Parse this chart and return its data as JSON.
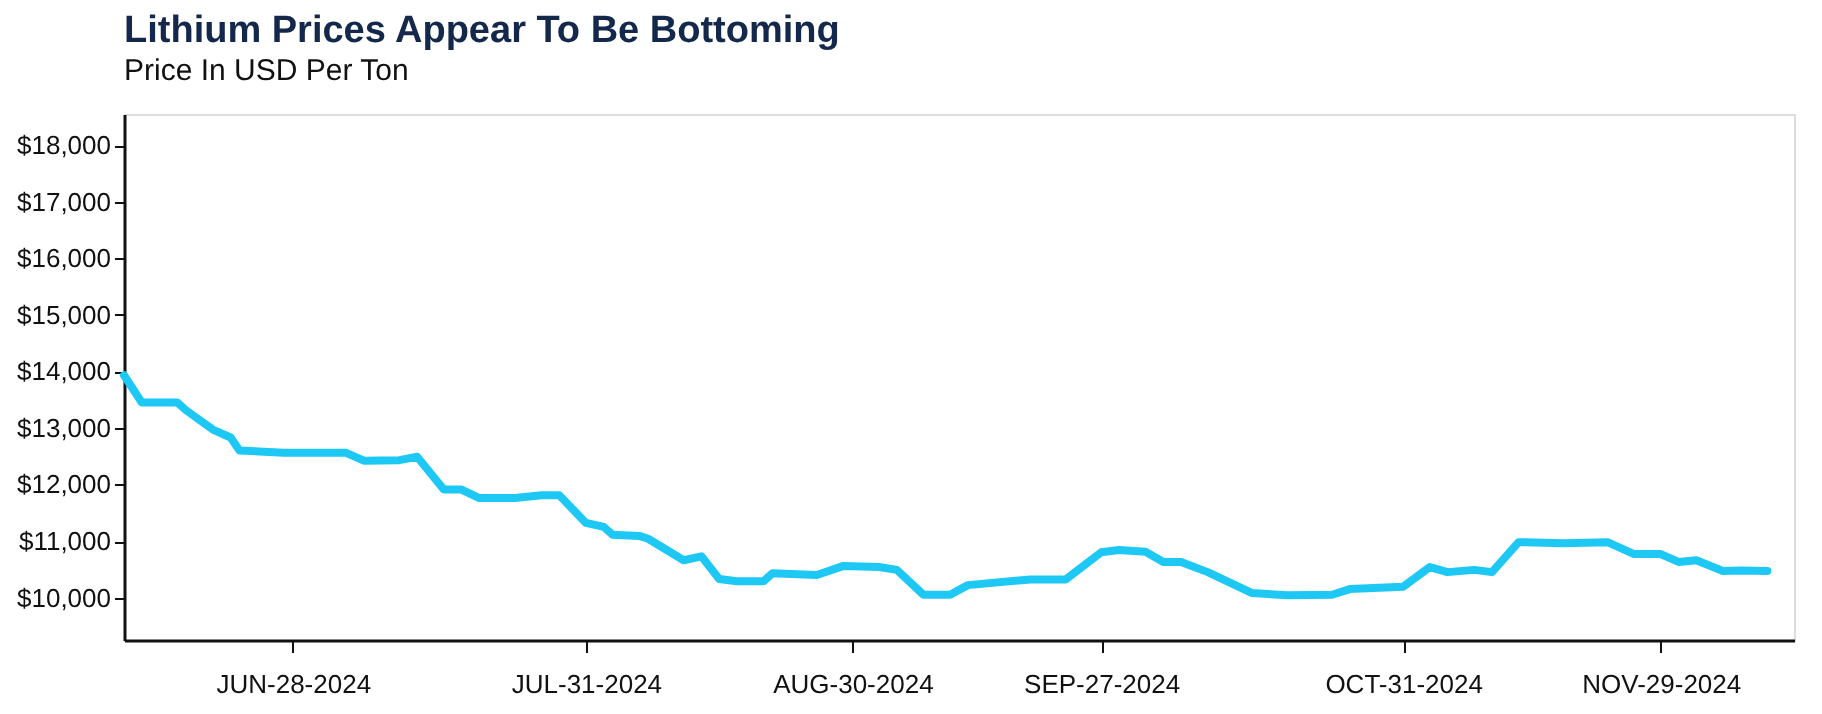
{
  "chart_data": {
    "type": "line",
    "title": "Lithium Prices Appear To Be Bottoming",
    "subtitle": "Price In USD Per Ton",
    "x": [
      "2024-06-09",
      "2024-06-11",
      "2024-06-15",
      "2024-06-16",
      "2024-06-19",
      "2024-06-21",
      "2024-06-22",
      "2024-06-27",
      "2024-07-04",
      "2024-07-06",
      "2024-07-10",
      "2024-07-12",
      "2024-07-15",
      "2024-07-17",
      "2024-07-19",
      "2024-07-23",
      "2024-07-26",
      "2024-07-28",
      "2024-07-31",
      "2024-08-02",
      "2024-08-03",
      "2024-08-06",
      "2024-08-07",
      "2024-08-11",
      "2024-08-13",
      "2024-08-15",
      "2024-08-17",
      "2024-08-20",
      "2024-08-21",
      "2024-08-26",
      "2024-08-29",
      "2024-09-02",
      "2024-09-04",
      "2024-09-07",
      "2024-09-10",
      "2024-09-12",
      "2024-09-19",
      "2024-09-23",
      "2024-09-27",
      "2024-09-29",
      "2024-10-02",
      "2024-10-04",
      "2024-10-06",
      "2024-10-09",
      "2024-10-14",
      "2024-10-18",
      "2024-10-23",
      "2024-10-25",
      "2024-10-31",
      "2024-11-03",
      "2024-11-05",
      "2024-11-08",
      "2024-11-10",
      "2024-11-13",
      "2024-11-18",
      "2024-11-23",
      "2024-11-26",
      "2024-11-29",
      "2024-12-01",
      "2024-12-03",
      "2024-12-06",
      "2024-12-08",
      "2024-12-11"
    ],
    "series": [
      {
        "color": "#1ec8f5",
        "values": [
          13930,
          13450,
          13450,
          13310,
          12970,
          12830,
          12600,
          12560,
          12560,
          12420,
          12430,
          12490,
          11910,
          11910,
          11760,
          11760,
          11810,
          11810,
          11320,
          11250,
          11110,
          11090,
          11040,
          10660,
          10730,
          10330,
          10290,
          10290,
          10430,
          10400,
          10560,
          10540,
          10490,
          10050,
          10050,
          10220,
          10320,
          10320,
          10800,
          10840,
          10810,
          10630,
          10630,
          10450,
          10080,
          10040,
          10050,
          10150,
          10190,
          10540,
          10450,
          10490,
          10450,
          10980,
          10960,
          10980,
          10770,
          10770,
          10630,
          10660,
          10470,
          10480,
          10470
        ]
      }
    ],
    "xlim": [
      "2024-06-09",
      "2024-12-14"
    ],
    "xticks": [
      {
        "value": "2024-06-28",
        "label": "JUN-28-2024"
      },
      {
        "value": "2024-07-31",
        "label": "JUL-31-2024"
      },
      {
        "value": "2024-08-30",
        "label": "AUG-30-2024"
      },
      {
        "value": "2024-09-27",
        "label": "SEP-27-2024"
      },
      {
        "value": "2024-10-31",
        "label": "OCT-31-2024"
      },
      {
        "value": "2024-11-29",
        "label": "NOV-29-2024"
      }
    ],
    "ylim": [
      9250,
      18550
    ],
    "yticks": [
      {
        "value": 10000,
        "label": "$10,000"
      },
      {
        "value": 11000,
        "label": "$11,000"
      },
      {
        "value": 12000,
        "label": "$12,000"
      },
      {
        "value": 13000,
        "label": "$13,000"
      },
      {
        "value": 14000,
        "label": "$14,000"
      },
      {
        "value": 15000,
        "label": "$15,000"
      },
      {
        "value": 16000,
        "label": "$16,000"
      },
      {
        "value": 17000,
        "label": "$17,000"
      },
      {
        "value": 18000,
        "label": "$18,000"
      }
    ],
    "grid": false,
    "marker": "none",
    "line_style": "solid"
  }
}
